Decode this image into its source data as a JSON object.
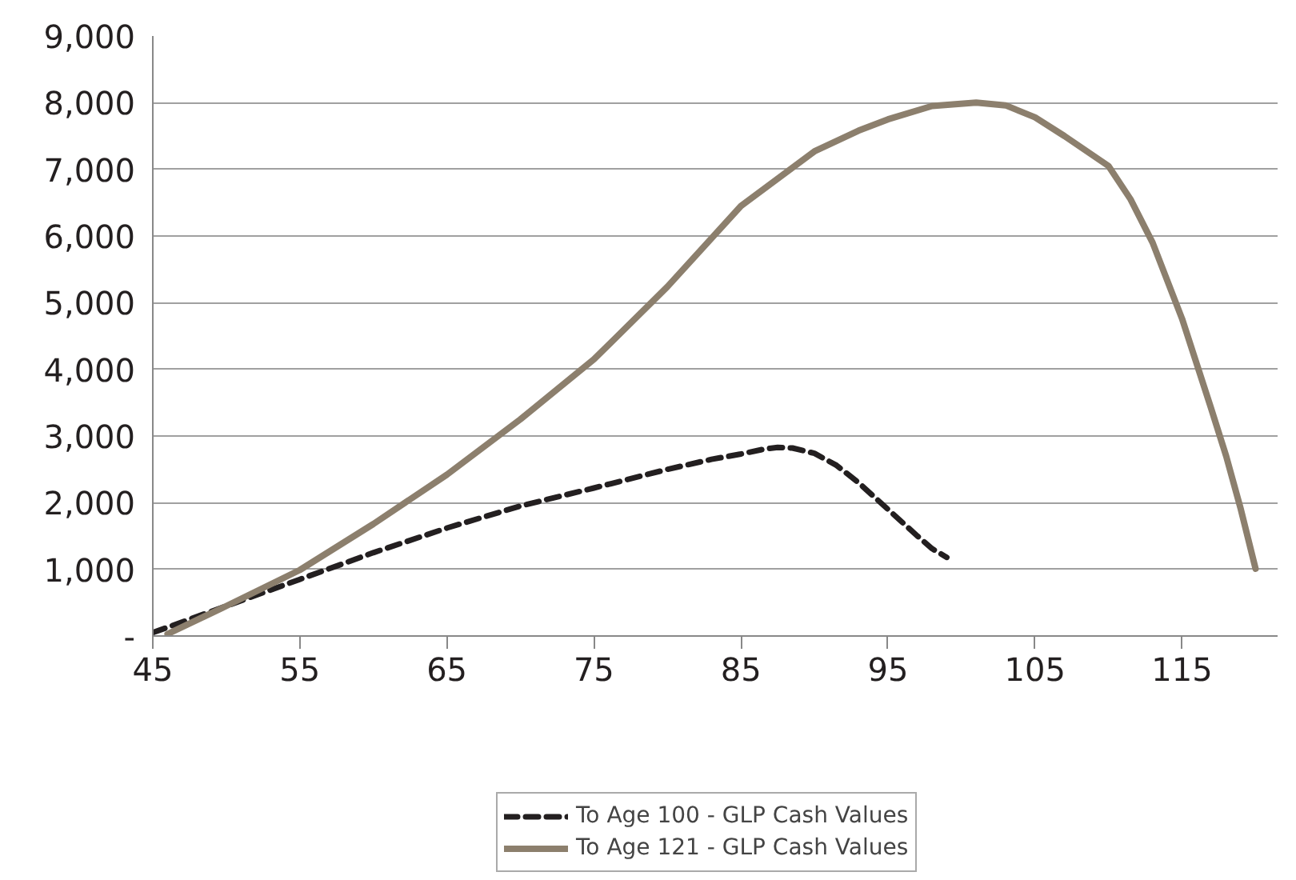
{
  "chart_data": {
    "type": "line",
    "xlim": [
      45,
      121.5
    ],
    "xticks": [
      45,
      55,
      65,
      75,
      85,
      95,
      105,
      115
    ],
    "ylim": [
      0,
      9000
    ],
    "yticks": [
      {
        "value": 0,
        "label": "-"
      },
      {
        "value": 1000,
        "label": "1,000"
      },
      {
        "value": 2000,
        "label": "2,000"
      },
      {
        "value": 3000,
        "label": "3,000"
      },
      {
        "value": 4000,
        "label": "4,000"
      },
      {
        "value": 5000,
        "label": "5,000"
      },
      {
        "value": 6000,
        "label": "6,000"
      },
      {
        "value": 7000,
        "label": "7,000"
      },
      {
        "value": 8000,
        "label": "8,000"
      },
      {
        "value": 9000,
        "label": "9,000"
      }
    ],
    "grid": "y",
    "legend": "bottom",
    "series": [
      {
        "name": "To Age 100 - GLP Cash Values",
        "color": "#231f20",
        "line_style": "dashed",
        "x": [
          45,
          50,
          55,
          60,
          65,
          70,
          75,
          80,
          83,
          85,
          86.5,
          87.5,
          88.5,
          90,
          91.5,
          93,
          95,
          97,
          98,
          99
        ],
        "values": [
          50,
          450,
          850,
          1250,
          1620,
          1950,
          2220,
          2500,
          2650,
          2730,
          2800,
          2830,
          2820,
          2740,
          2560,
          2300,
          1900,
          1500,
          1310,
          1180
        ]
      },
      {
        "name": "To Age 121 - GLP Cash Values",
        "color": "#8c7f6d",
        "line_style": "solid",
        "x": [
          46,
          50,
          55,
          60,
          65,
          70,
          75,
          80,
          85,
          90,
          93,
          95,
          98,
          101,
          103,
          105,
          107,
          110,
          111.5,
          113,
          115,
          117,
          118,
          119,
          120
        ],
        "values": [
          30,
          450,
          990,
          1680,
          2420,
          3250,
          4150,
          5240,
          6450,
          7270,
          7580,
          7750,
          7950,
          8000,
          7960,
          7780,
          7500,
          7050,
          6550,
          5900,
          4760,
          3400,
          2700,
          1900,
          1010
        ]
      }
    ]
  }
}
